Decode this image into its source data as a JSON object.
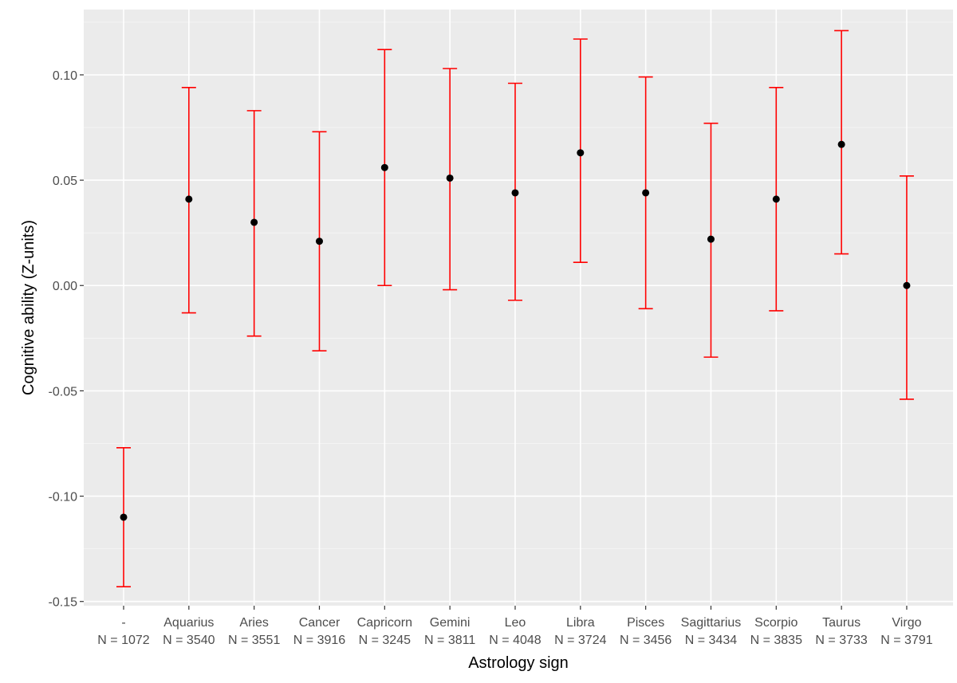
{
  "chart_data": {
    "type": "errorbar",
    "title": "",
    "xlabel": "Astrology sign",
    "ylabel": "Cognitive ability (Z-units)",
    "ylim": [
      -0.152,
      0.131
    ],
    "yticks": [
      -0.15,
      -0.1,
      -0.05,
      0.0,
      0.05,
      0.1
    ],
    "ytick_labels": [
      "-0.15",
      "-0.10",
      "-0.05",
      "0.00",
      "0.05",
      "0.10"
    ],
    "categories": [
      {
        "sign": "-",
        "n_label": "N = 1072",
        "mean": -0.11,
        "lower": -0.143,
        "upper": -0.077
      },
      {
        "sign": "Aquarius",
        "n_label": "N = 3540",
        "mean": 0.041,
        "lower": -0.013,
        "upper": 0.094
      },
      {
        "sign": "Aries",
        "n_label": "N = 3551",
        "mean": 0.03,
        "lower": -0.024,
        "upper": 0.083
      },
      {
        "sign": "Cancer",
        "n_label": "N = 3916",
        "mean": 0.021,
        "lower": -0.031,
        "upper": 0.073
      },
      {
        "sign": "Capricorn",
        "n_label": "N = 3245",
        "mean": 0.056,
        "lower": 0.0,
        "upper": 0.112
      },
      {
        "sign": "Gemini",
        "n_label": "N = 3811",
        "mean": 0.051,
        "lower": -0.002,
        "upper": 0.103
      },
      {
        "sign": "Leo",
        "n_label": "N = 4048",
        "mean": 0.044,
        "lower": -0.007,
        "upper": 0.096
      },
      {
        "sign": "Libra",
        "n_label": "N = 3724",
        "mean": 0.063,
        "lower": 0.011,
        "upper": 0.117
      },
      {
        "sign": "Pisces",
        "n_label": "N = 3456",
        "mean": 0.044,
        "lower": -0.011,
        "upper": 0.099
      },
      {
        "sign": "Sagittarius",
        "n_label": "N = 3434",
        "mean": 0.022,
        "lower": -0.034,
        "upper": 0.077
      },
      {
        "sign": "Scorpio",
        "n_label": "N = 3835",
        "mean": 0.041,
        "lower": -0.012,
        "upper": 0.094
      },
      {
        "sign": "Taurus",
        "n_label": "N = 3733",
        "mean": 0.067,
        "lower": 0.015,
        "upper": 0.121
      },
      {
        "sign": "Virgo",
        "n_label": "N = 3791",
        "mean": 0.0,
        "lower": -0.054,
        "upper": 0.052
      }
    ],
    "point_color": "#000000",
    "errorbar_color": "#FF0000",
    "panel_background": "#EBEBEB",
    "grid": true,
    "legend": "none"
  }
}
